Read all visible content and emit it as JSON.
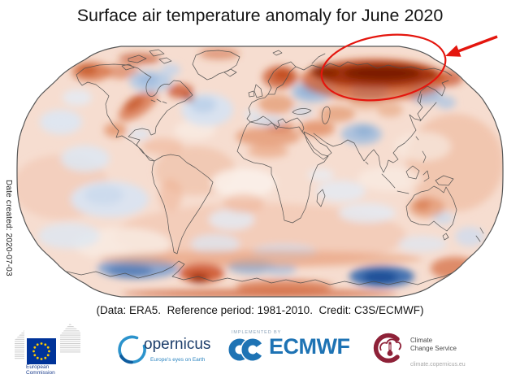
{
  "title": "Surface air temperature anomaly for June 2020",
  "caption": "(Data: ERA5.  Reference period: 1981-2010.  Credit: C3S/ECMWF)",
  "side_note": "Date created: 2020-07-03",
  "annotation": {
    "color": "#e4160e",
    "meaning": "red ellipse and arrow highlighting strong warm anomaly over Arctic Siberia"
  },
  "map": {
    "base_color": "#f6ddd0",
    "outline_color": "#4d4d4d",
    "border_color": "#555555",
    "blobs": [
      [
        75,
        230,
        60,
        40,
        "#f3cdbb",
        0.9
      ],
      [
        320,
        290,
        180,
        40,
        "#f2c6b0",
        0.7
      ],
      [
        560,
        200,
        60,
        60,
        "#f0c0a8",
        0.8
      ],
      [
        240,
        210,
        50,
        30,
        "#f0c0a8",
        0.7
      ],
      [
        300,
        225,
        40,
        18,
        "#fbf1ea",
        0.9
      ],
      [
        150,
        300,
        60,
        20,
        "#f9ece4",
        0.8
      ],
      [
        480,
        220,
        40,
        15,
        "#f9ece4",
        0.7
      ],
      [
        240,
        160,
        25,
        12,
        "#f9ece4",
        0.8
      ],
      [
        520,
        180,
        35,
        18,
        "#f8e9e0",
        0.7
      ],
      [
        75,
        150,
        26,
        15,
        "#dde7f3",
        0.9
      ],
      [
        95,
        120,
        18,
        10,
        "#e4ecf6",
        0.8
      ],
      [
        105,
        195,
        30,
        16,
        "#dde7f3",
        0.85
      ],
      [
        135,
        245,
        48,
        22,
        "#dae4f1",
        0.95
      ],
      [
        128,
        240,
        24,
        12,
        "#c9d9ec",
        0.8
      ],
      [
        85,
        290,
        38,
        16,
        "#dde7f3",
        0.8
      ],
      [
        172,
        165,
        13,
        7,
        "#dce6f2",
        0.8
      ],
      [
        255,
        135,
        32,
        20,
        "#d8e3f1",
        0.95
      ],
      [
        250,
        129,
        16,
        10,
        "#bed1e9",
        0.9
      ],
      [
        285,
        270,
        28,
        13,
        "#e3ebf5",
        0.8
      ],
      [
        265,
        300,
        30,
        12,
        "#dce6f2",
        0.75
      ],
      [
        350,
        310,
        40,
        10,
        "#cfdcee",
        0.7
      ],
      [
        420,
        235,
        30,
        13,
        "#e3ebf5",
        0.8
      ],
      [
        452,
        262,
        35,
        12,
        "#e3ebf5",
        0.8
      ],
      [
        395,
        215,
        16,
        8,
        "#e7eef7",
        0.7
      ],
      [
        545,
        268,
        13,
        8,
        "#cbdaec",
        0.8
      ],
      [
        578,
        291,
        18,
        12,
        "#cfdcee",
        0.8
      ],
      [
        520,
        300,
        30,
        10,
        "#dde7f3",
        0.7
      ],
      [
        112,
        88,
        24,
        12,
        "#d4683a",
        0.75
      ],
      [
        108,
        86,
        12,
        6,
        "#c04f20",
        0.7
      ],
      [
        150,
        88,
        22,
        9,
        "#d4683a",
        0.55
      ],
      [
        172,
        72,
        26,
        7,
        "#c04a1c",
        0.6
      ],
      [
        270,
        66,
        25,
        7,
        "#cc5a2e",
        0.5
      ],
      [
        170,
        130,
        28,
        12,
        "#d4683a",
        0.7,
        -35
      ],
      [
        165,
        127,
        14,
        7,
        "#bf481c",
        0.6,
        -35
      ],
      [
        222,
        112,
        16,
        9,
        "#c85028",
        0.75
      ],
      [
        232,
        120,
        7,
        5,
        "#a83a10",
        0.7
      ],
      [
        142,
        160,
        14,
        9,
        "#dd7a4a",
        0.6
      ],
      [
        200,
        180,
        25,
        10,
        "#eeb091",
        0.55
      ],
      [
        210,
        240,
        14,
        20,
        "#eeb091",
        0.55
      ],
      [
        345,
        95,
        22,
        14,
        "#cc5a2e",
        0.8
      ],
      [
        348,
        92,
        12,
        8,
        "#bf4718",
        0.8
      ],
      [
        340,
        128,
        22,
        12,
        "#e08a5a",
        0.6
      ],
      [
        330,
        168,
        40,
        12,
        "#e0895c",
        0.65
      ],
      [
        345,
        156,
        18,
        6,
        "#d4683a",
        0.6
      ],
      [
        330,
        186,
        25,
        8,
        "#e89d74",
        0.6
      ],
      [
        390,
        158,
        22,
        10,
        "#dd7a4a",
        0.65
      ],
      [
        415,
        140,
        22,
        10,
        "#e08a5a",
        0.6
      ],
      [
        450,
        125,
        20,
        10,
        "#e4956a",
        0.5
      ],
      [
        480,
        135,
        16,
        9,
        "#e4956a",
        0.5
      ],
      [
        520,
        115,
        20,
        12,
        "#dd7a4a",
        0.55
      ],
      [
        552,
        96,
        18,
        10,
        "#c85028",
        0.7
      ],
      [
        525,
        255,
        22,
        13,
        "#e0895c",
        0.6
      ],
      [
        520,
        252,
        10,
        7,
        "#d4683a",
        0.55
      ],
      [
        300,
        250,
        25,
        12,
        "#eeb091",
        0.5
      ],
      [
        185,
        100,
        26,
        13,
        "#b7cce6",
        0.95
      ],
      [
        182,
        98,
        13,
        7,
        "#9cb9dc",
        0.85
      ],
      [
        210,
        86,
        12,
        8,
        "#c5d5ea",
        0.85
      ],
      [
        310,
        141,
        10,
        6,
        "#dce6f2",
        0.75
      ],
      [
        330,
        149,
        20,
        6,
        "#ccdaec",
        0.8
      ],
      [
        372,
        137,
        13,
        5,
        "#c2d3e9",
        0.8
      ],
      [
        385,
        113,
        26,
        13,
        "#a7c0de",
        0.95
      ],
      [
        381,
        112,
        13,
        7,
        "#92b1d6",
        0.85
      ],
      [
        455,
        113,
        22,
        11,
        "#b3c8e3",
        0.9
      ],
      [
        525,
        116,
        19,
        12,
        "#a7c0de",
        0.9
      ],
      [
        549,
        126,
        12,
        8,
        "#b3c8e3",
        0.85
      ],
      [
        445,
        165,
        25,
        13,
        "#a7c0de",
        0.9
      ],
      [
        448,
        161,
        12,
        7,
        "#8fafd4",
        0.8
      ],
      [
        170,
        330,
        50,
        13,
        "#7d9fce",
        0.9
      ],
      [
        160,
        333,
        28,
        8,
        "#567fb8",
        0.9
      ],
      [
        310,
        328,
        30,
        9,
        "#8fafd4",
        0.85
      ],
      [
        345,
        331,
        20,
        7,
        "#a9c1de",
        0.8
      ],
      [
        470,
        340,
        40,
        13,
        "#3b6eb0",
        0.95
      ],
      [
        468,
        341,
        22,
        8,
        "#1d4f97",
        0.95
      ],
      [
        460,
        98,
        90,
        26,
        "#cf5a2a",
        0.75
      ],
      [
        465,
        92,
        75,
        16,
        "#a33008",
        0.95
      ],
      [
        470,
        90,
        48,
        9,
        "#7a1f00",
        0.95
      ],
      [
        400,
        88,
        18,
        9,
        "#8a2504",
        0.85
      ],
      [
        320,
        318,
        200,
        10,
        "#e5956b",
        0.5
      ],
      [
        248,
        336,
        28,
        12,
        "#cc4f24",
        0.85
      ],
      [
        245,
        342,
        12,
        6,
        "#952a06",
        0.8
      ],
      [
        350,
        352,
        60,
        8,
        "#d4683a",
        0.7
      ],
      [
        560,
        330,
        30,
        14,
        "#d4683a",
        0.7
      ],
      [
        320,
        361,
        170,
        5,
        "#cc5a2e",
        0.75
      ]
    ]
  },
  "chart_data": {
    "type": "heatmap",
    "title": "Surface air temperature anomaly for June 2020",
    "projection": "Robinson world map",
    "dataset": "ERA5",
    "reference_period": "1981-2010",
    "credit": "C3S/ECMWF",
    "date_created": "2020-07-03",
    "legend": "no colorbar shown; red shades = warmer than 1981-2010 average, blue shades = colder",
    "highlight": "hand-drawn red ellipse with red arrow marking exceptional warm anomaly over Arctic Siberia",
    "regions": [
      {
        "region": "Arctic Siberia coast (highlighted)",
        "anomaly": "strong warm (darkest red)"
      },
      {
        "region": "Scandinavia / northwest Russia",
        "anomaly": "warm"
      },
      {
        "region": "Western Russia south of Arctic band",
        "anomaly": "cool"
      },
      {
        "region": "Central-east Siberia interior",
        "anomaly": "cool"
      },
      {
        "region": "Alaska and northwest Canada",
        "anomaly": "warm"
      },
      {
        "region": "Central Canada / Hudson Bay",
        "anomaly": "cool"
      },
      {
        "region": "Central United States",
        "anomaly": "warm"
      },
      {
        "region": "Quebec / Labrador",
        "anomaly": "warm"
      },
      {
        "region": "North Atlantic south of Greenland",
        "anomaly": "slightly cool"
      },
      {
        "region": "North Africa and Middle East",
        "anomaly": "warm"
      },
      {
        "region": "India and Tibetan Plateau",
        "anomaly": "cool"
      },
      {
        "region": "Eastern tropical Pacific",
        "anomaly": "slightly cool"
      },
      {
        "region": "Most ocean areas",
        "anomaly": "slightly warm"
      },
      {
        "region": "Central Australia",
        "anomaly": "warm"
      },
      {
        "region": "Southern Ocean bands",
        "anomaly": "mixed warm and cold patches"
      },
      {
        "region": "Antarctic coast ~90E-130E",
        "anomaly": "strong cold (deep blue)"
      },
      {
        "region": "Antarctic Peninsula sector",
        "anomaly": "strong warm"
      }
    ]
  },
  "footer": {
    "eu": {
      "line1": "European",
      "line2": "Commission",
      "flag_color": "#003399",
      "star_color": "#ffcc00"
    },
    "copernicus": {
      "name": "opernicus",
      "tagline": "Europe's eyes on Earth"
    },
    "ecmwf": {
      "implemented_by": "IMPLEMENTED BY",
      "name": "ECMWF",
      "brand_color": "#1e73b4"
    },
    "c3s": {
      "line1": "Climate",
      "line2": "Change Service",
      "url": "climate.copernicus.eu",
      "brand_color": "#8e2138"
    }
  }
}
